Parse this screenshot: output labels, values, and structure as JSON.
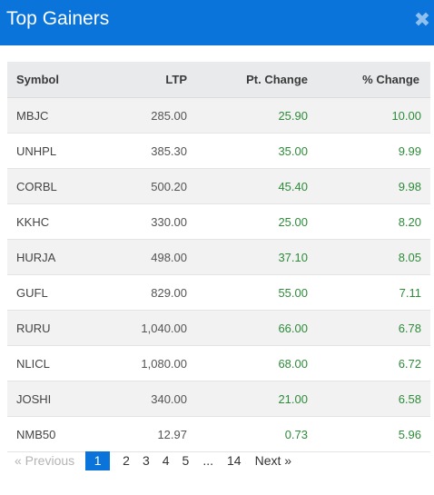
{
  "header": {
    "title": "Top Gainers",
    "close_glyph": "✖"
  },
  "table": {
    "columns": [
      "Symbol",
      "LTP",
      "Pt. Change",
      "% Change"
    ],
    "rows": [
      {
        "symbol": "MBJC",
        "ltp": "285.00",
        "pt_change": "25.90",
        "pct_change": "10.00"
      },
      {
        "symbol": "UNHPL",
        "ltp": "385.30",
        "pt_change": "35.00",
        "pct_change": "9.99"
      },
      {
        "symbol": "CORBL",
        "ltp": "500.20",
        "pt_change": "45.40",
        "pct_change": "9.98"
      },
      {
        "symbol": "KKHC",
        "ltp": "330.00",
        "pt_change": "25.00",
        "pct_change": "8.20"
      },
      {
        "symbol": "HURJA",
        "ltp": "498.00",
        "pt_change": "37.10",
        "pct_change": "8.05"
      },
      {
        "symbol": "GUFL",
        "ltp": "829.00",
        "pt_change": "55.00",
        "pct_change": "7.11"
      },
      {
        "symbol": "RURU",
        "ltp": "1,040.00",
        "pt_change": "66.00",
        "pct_change": "6.78"
      },
      {
        "symbol": "NLICL",
        "ltp": "1,080.00",
        "pt_change": "68.00",
        "pct_change": "6.72"
      },
      {
        "symbol": "JOSHI",
        "ltp": "340.00",
        "pt_change": "21.00",
        "pct_change": "6.58"
      },
      {
        "symbol": "NMB50",
        "ltp": "12.97",
        "pt_change": "0.73",
        "pct_change": "5.96"
      }
    ]
  },
  "pagination": {
    "prev_label": "« Previous",
    "pages": [
      "1",
      "2",
      "3",
      "4",
      "5"
    ],
    "active_page": "1",
    "ellipsis": "...",
    "last_page": "14",
    "next_label": "Next »"
  },
  "colors": {
    "header_bg": "#0a74da",
    "positive": "#2e8b3a"
  }
}
